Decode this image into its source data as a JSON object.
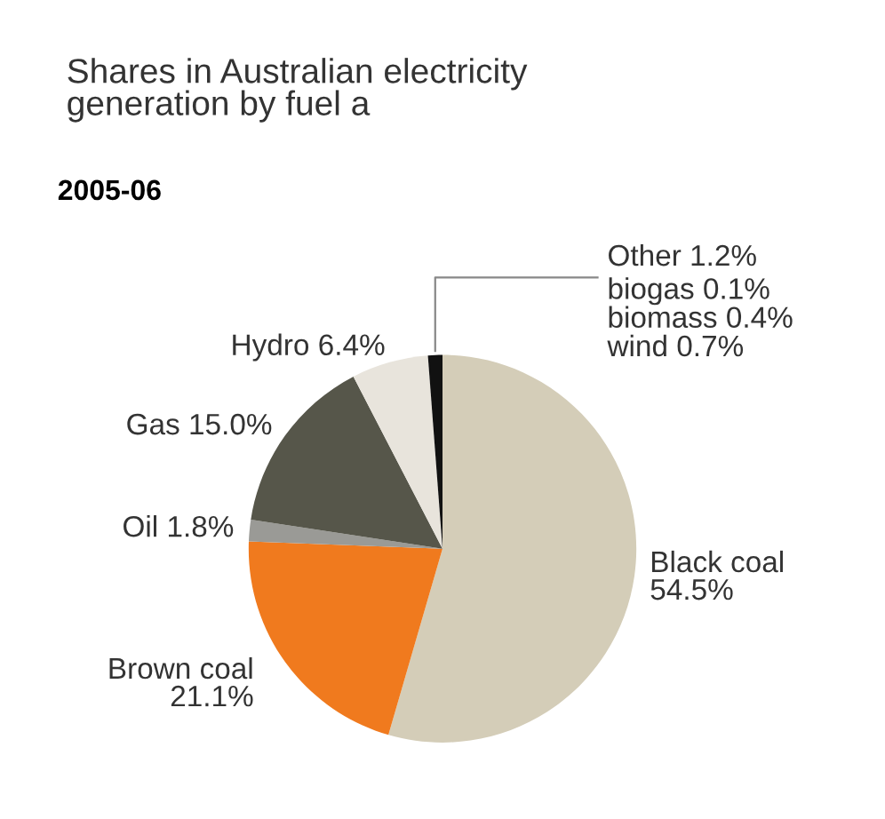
{
  "chart_data": {
    "type": "pie",
    "title": "Shares in Australian electricity\ngeneration by fuel a",
    "subtitle": "2005-06",
    "categories": [
      "Black coal",
      "Brown coal",
      "Oil",
      "Gas",
      "Hydro",
      "Other"
    ],
    "values": [
      54.5,
      21.1,
      1.8,
      15.0,
      6.4,
      1.2
    ],
    "value_labels": [
      "54.5%",
      "21.1%",
      "1.8%",
      "15.0%",
      "6.4%",
      "1.2%"
    ],
    "colors": [
      "#d4cdb8",
      "#f07a1e",
      "#9a9a96",
      "#56564a",
      "#e8e4dc",
      "#111111"
    ],
    "annotations": [
      "biogas 0.1%\nbiomass 0.4%\nwind 0.7%"
    ],
    "legend": false
  }
}
